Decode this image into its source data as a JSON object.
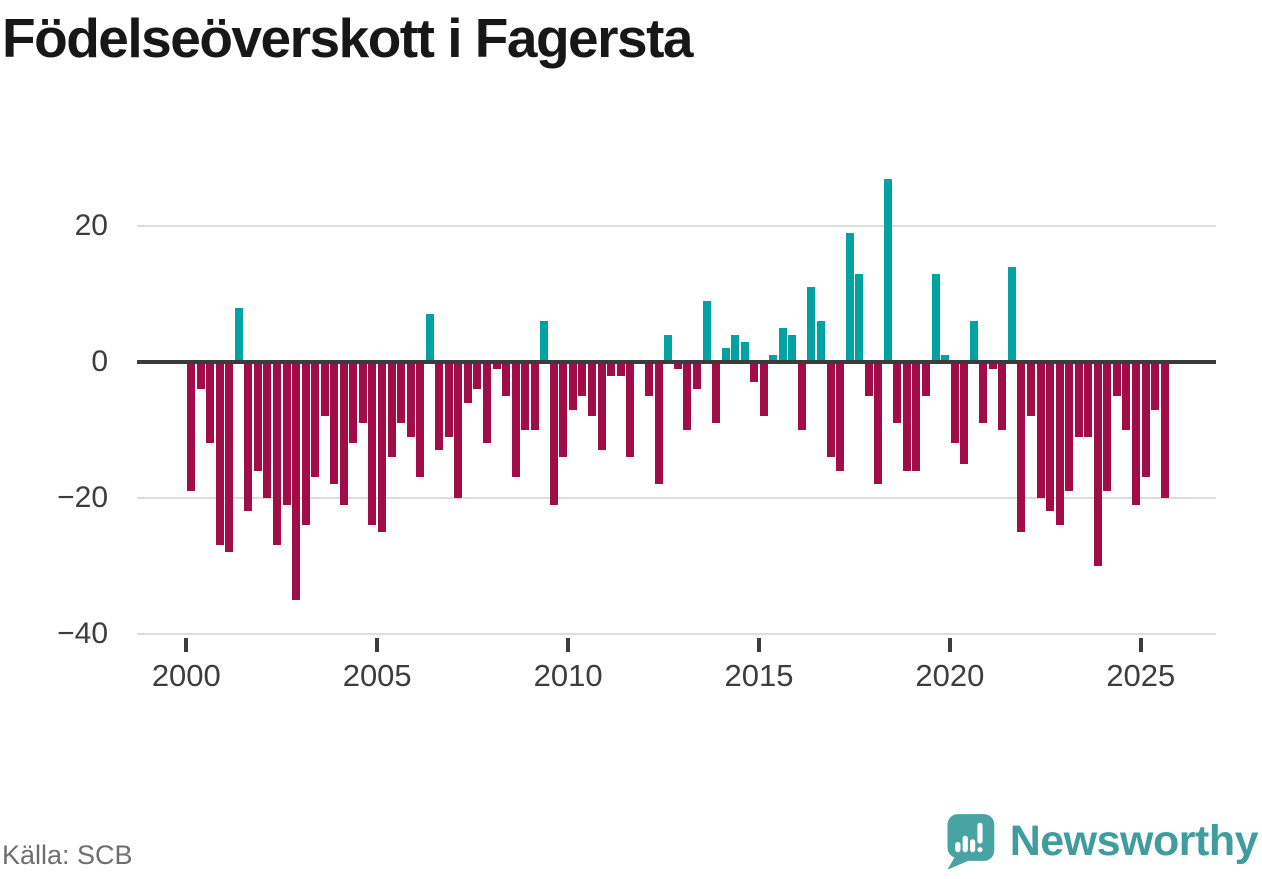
{
  "title": "Födelseöverskott i Fagersta",
  "source_label": "Källa: SCB",
  "branding": {
    "logo_text": "Newsworthy",
    "logo_icon": "bar-chart-speech-bubble",
    "logo_text_color": "#3f9d9d",
    "logo_icon_color": "#48a3a3"
  },
  "colors": {
    "positive_bar": "#00a2a2",
    "negative_bar": "#a10d49",
    "zero_line": "#3b3b3b",
    "gridline": "#dcdcdc",
    "axis_text": "#3d3d3d",
    "title_text": "#171717",
    "source_text": "#6e6e73"
  },
  "chart_data": {
    "type": "bar",
    "title": "Födelseöverskott i Fagersta",
    "frequency": "quarterly",
    "start": "2000Q1",
    "end": "2025Q3",
    "values": [
      -19,
      -4,
      -12,
      -27,
      -28,
      8,
      -22,
      -16,
      -20,
      -27,
      -21,
      -35,
      -24,
      -17,
      -8,
      -18,
      -21,
      -12,
      -9,
      -24,
      -25,
      -14,
      -9,
      -11,
      -17,
      7,
      -13,
      -11,
      -20,
      -6,
      -4,
      -12,
      -1,
      -5,
      -17,
      -10,
      -10,
      6,
      -21,
      -14,
      -7,
      -5,
      -8,
      -13,
      -2,
      -2,
      -14,
      0,
      -5,
      -18,
      4,
      -1,
      -10,
      -4,
      9,
      -9,
      2,
      4,
      3,
      -3,
      -8,
      1,
      5,
      4,
      -10,
      11,
      6,
      -14,
      -16,
      19,
      13,
      -5,
      -18,
      27,
      -9,
      -16,
      -16,
      -5,
      13,
      1,
      -12,
      -15,
      6,
      -9,
      -1,
      -10,
      14,
      -25,
      -8,
      -20,
      -22,
      -24,
      -19,
      -11,
      -11,
      -30,
      -19,
      -5,
      -10,
      -21,
      -17,
      -7,
      -20
    ],
    "yticks": [
      20,
      0,
      -20,
      -40
    ],
    "ytick_labels": [
      "20",
      "0",
      "−20",
      "−40"
    ],
    "xticks": [
      2000,
      2005,
      2010,
      2015,
      2020,
      2025
    ],
    "xtick_labels": [
      "2000",
      "2005",
      "2010",
      "2015",
      "2020",
      "2025"
    ],
    "ylim": [
      -40,
      28
    ],
    "grid": true,
    "legend": false
  }
}
